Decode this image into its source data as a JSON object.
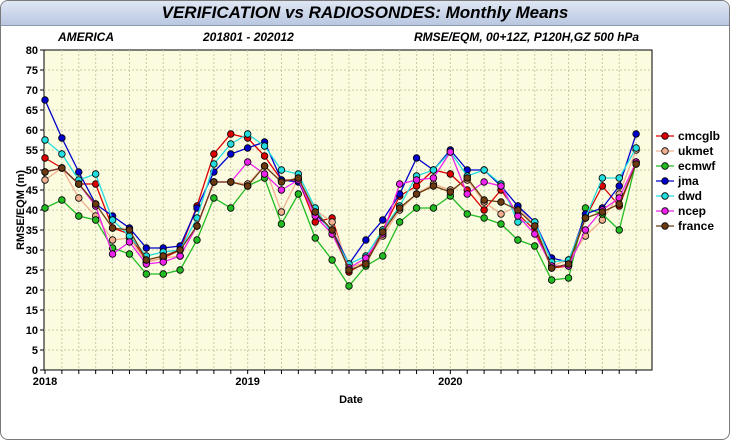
{
  "header": {
    "title": "VERIFICATION vs RADIOSONDES: Monthly Means"
  },
  "subtitle": {
    "region": "AMERICA",
    "period": "201801 - 202012",
    "metric": "RMSE/EQM, 00+12Z, P120H,GZ 500 hPa"
  },
  "chart_data": {
    "type": "line",
    "xlabel": "Date",
    "ylabel": "RMSE/EQM (m)",
    "ylim": [
      0,
      80
    ],
    "yticks": [
      0,
      5,
      10,
      15,
      20,
      25,
      30,
      35,
      40,
      45,
      50,
      55,
      60,
      65,
      70,
      75,
      80
    ],
    "xticks": [
      "2018",
      "2019",
      "2020"
    ],
    "x": [
      "2018-01",
      "2018-02",
      "2018-03",
      "2018-04",
      "2018-05",
      "2018-06",
      "2018-07",
      "2018-08",
      "2018-09",
      "2018-10",
      "2018-11",
      "2018-12",
      "2019-01",
      "2019-02",
      "2019-03",
      "2019-04",
      "2019-05",
      "2019-06",
      "2019-07",
      "2019-08",
      "2019-09",
      "2019-10",
      "2019-11",
      "2019-12",
      "2020-01",
      "2020-02",
      "2020-03",
      "2020-04",
      "2020-05",
      "2020-06",
      "2020-07",
      "2020-08",
      "2020-09",
      "2020-10",
      "2020-11",
      "2020-12"
    ],
    "grid": true,
    "legend_position": "right",
    "series": [
      {
        "name": "cmcglb",
        "color": "#dd0000",
        "values": [
          53,
          50.5,
          46.5,
          46.5,
          35.5,
          34,
          27,
          28,
          30,
          41,
          54,
          59,
          58,
          53.5,
          47.5,
          47.5,
          37,
          38,
          24.5,
          27,
          35,
          43.5,
          46,
          50,
          49,
          45,
          40,
          45,
          39,
          35,
          25.5,
          26,
          38,
          46,
          41,
          51.5
        ]
      },
      {
        "name": "ukmet",
        "color": "#f0b090",
        "values": [
          47.5,
          50.5,
          43,
          38.5,
          32.5,
          33,
          27,
          28,
          28.5,
          36,
          47,
          47,
          46.5,
          51,
          39.5,
          48,
          40,
          37,
          25.5,
          27,
          33.5,
          40,
          44,
          46.5,
          45,
          47.5,
          42,
          39,
          41,
          36,
          26,
          27.5,
          33.5,
          37.5,
          44,
          55
        ]
      },
      {
        "name": "ecmwf",
        "color": "#22bb22",
        "values": [
          40.5,
          42.5,
          38.5,
          37.5,
          30.5,
          29,
          24,
          24,
          25,
          32.5,
          43,
          40.5,
          46,
          48,
          36.5,
          44,
          33,
          27.5,
          21,
          26,
          28.5,
          37,
          40.5,
          40.5,
          43.5,
          39,
          38,
          36.5,
          32.5,
          31,
          22.5,
          23,
          40.5,
          39,
          35,
          52
        ]
      },
      {
        "name": "jma",
        "color": "#0000cc",
        "values": [
          67.5,
          58,
          49.5,
          41.5,
          38.5,
          35.5,
          30.5,
          30.5,
          31,
          40.5,
          49.5,
          54,
          55.5,
          57,
          47.5,
          47,
          39,
          35,
          26.5,
          32.5,
          37.5,
          44,
          53,
          50,
          55,
          50,
          50,
          46,
          41,
          37,
          28,
          27,
          39,
          40.5,
          46,
          59
        ]
      },
      {
        "name": "dwd",
        "color": "#22dddd",
        "values": [
          57.5,
          54,
          47.5,
          49,
          37.5,
          33.5,
          28.5,
          29.5,
          30,
          38,
          51.5,
          56.5,
          59,
          56,
          50,
          49,
          40.5,
          34,
          26.5,
          28.5,
          35,
          41,
          48.5,
          50,
          54.5,
          48.5,
          50,
          46.5,
          37,
          37,
          27,
          27.5,
          38,
          48,
          48,
          55.5
        ]
      },
      {
        "name": "ncep",
        "color": "#ee22ee",
        "values": [
          49.5,
          50.5,
          46.5,
          41,
          29,
          32,
          26.5,
          27,
          28.5,
          36,
          47,
          47,
          52,
          49,
          45,
          47.5,
          38.5,
          34,
          25.5,
          28,
          34,
          46.5,
          47.5,
          48,
          54.5,
          44,
          47,
          46,
          38.5,
          34,
          26,
          26,
          35,
          40,
          43,
          52
        ]
      },
      {
        "name": "france",
        "color": "#6b3a10",
        "values": [
          49.5,
          50.5,
          46.5,
          41.5,
          35.5,
          35,
          27.5,
          28.5,
          30,
          36,
          47,
          47,
          46,
          51,
          47,
          48,
          39.5,
          35,
          25,
          26.5,
          34.5,
          40.5,
          44,
          46,
          44.5,
          48,
          42.5,
          42,
          40,
          36,
          25.5,
          26.5,
          38,
          39.5,
          41.5,
          51.5
        ]
      }
    ]
  }
}
